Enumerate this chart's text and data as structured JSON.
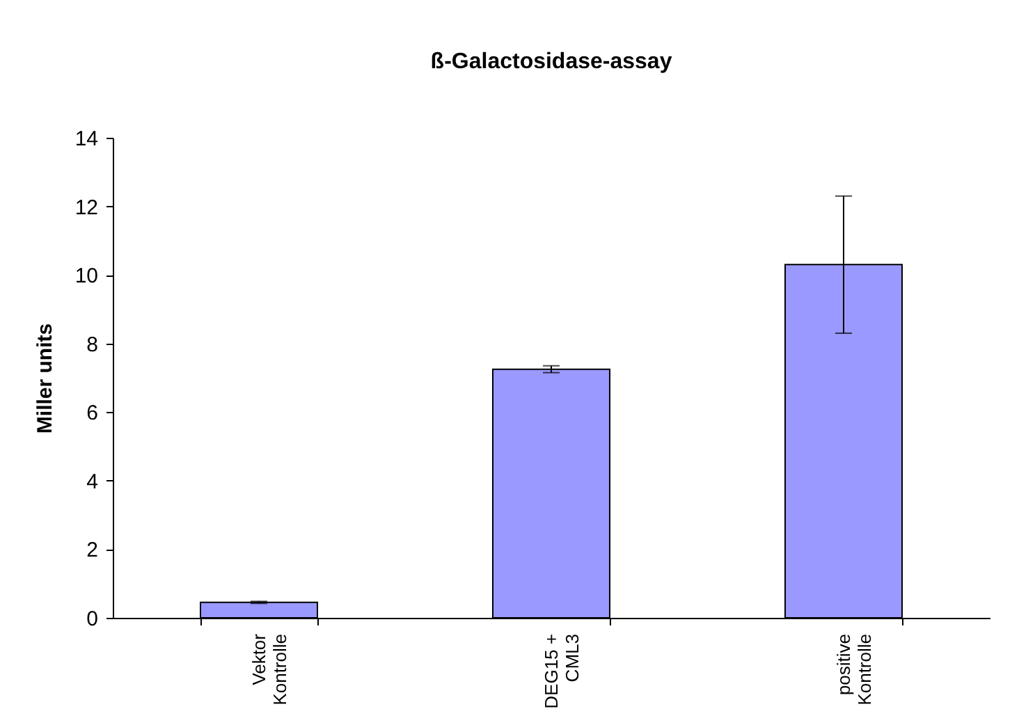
{
  "chart_data": {
    "type": "bar",
    "title": "ß-Galactosidase-assay",
    "ylabel": "Miller units",
    "categories": [
      "Vektor\nKontrolle",
      "DEG15 +\nCML3",
      "positive\nKontrolle"
    ],
    "values": [
      0.45,
      7.25,
      10.3
    ],
    "errors": [
      0.03,
      0.1,
      2.0
    ],
    "color": "#9999ff",
    "ylim": [
      0,
      14
    ],
    "yticks": [
      0,
      2,
      4,
      6,
      8,
      10,
      12,
      14
    ],
    "grid": false
  }
}
